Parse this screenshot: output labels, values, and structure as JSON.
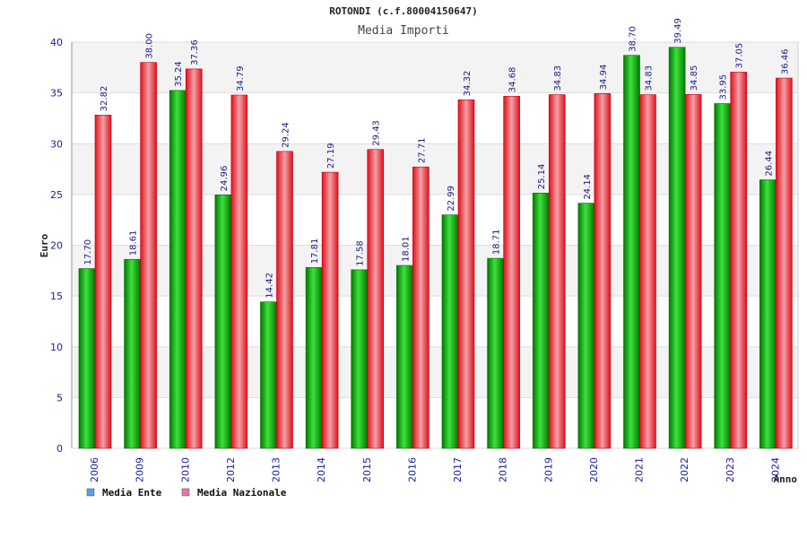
{
  "chart_data": {
    "type": "bar",
    "title": "ROTONDI (c.f.80004150647)",
    "subtitle": "Media Importi",
    "xlabel": "Anno",
    "ylabel": "Euro",
    "ylim": [
      0,
      40
    ],
    "yticks": [
      0,
      5,
      10,
      15,
      20,
      25,
      30,
      35,
      40
    ],
    "grid": true,
    "legend_position": "bottom-left",
    "categories": [
      "2006",
      "2009",
      "2010",
      "2012",
      "2013",
      "2014",
      "2015",
      "2016",
      "2017",
      "2018",
      "2019",
      "2020",
      "2021",
      "2022",
      "2023",
      "2024"
    ],
    "series": [
      {
        "name": "Media Ente",
        "color": "#00a000",
        "legend_color": "#5aa0e6",
        "values": [
          17.7,
          18.61,
          35.24,
          24.96,
          14.42,
          17.81,
          17.58,
          18.01,
          22.99,
          18.71,
          25.14,
          24.14,
          38.7,
          39.49,
          33.95,
          26.44
        ],
        "labels": [
          "17.70",
          "18.61",
          "35.24",
          "24.96",
          "14.42",
          "17.81",
          "17.58",
          "18.01",
          "22.99",
          "18.71",
          "25.14",
          "24.14",
          "38.70",
          "39.49",
          "33.95",
          "26.44"
        ]
      },
      {
        "name": "Media Nazionale",
        "color": "#e8141e",
        "legend_color": "#e07aa8",
        "values": [
          32.82,
          38.0,
          37.36,
          34.79,
          29.24,
          27.19,
          29.43,
          27.71,
          34.32,
          34.68,
          34.83,
          34.94,
          34.83,
          34.85,
          37.05,
          36.46
        ],
        "labels": [
          "32.82",
          "38.00",
          "37.36",
          "34.79",
          "29.24",
          "27.19",
          "29.43",
          "27.71",
          "34.32",
          "34.68",
          "34.83",
          "34.94",
          "34.83",
          "34.85",
          "37.05",
          "36.46"
        ]
      }
    ]
  }
}
